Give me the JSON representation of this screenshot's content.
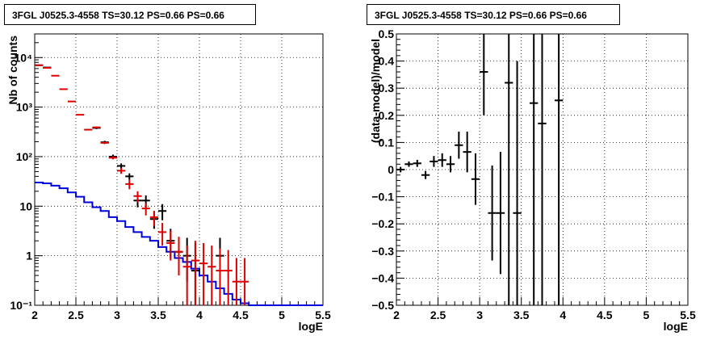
{
  "panels": {
    "left_title": "3FGL J0525.3-4558 TS=30.12 PS=0.66 PS=0.66",
    "right_title": "3FGL J0525.3-4558 TS=30.12 PS=0.66 PS=0.66"
  },
  "chart_data": [
    {
      "type": "line",
      "title": "3FGL J0525.3-4558 TS=30.12 PS=0.66 PS=0.66",
      "xlabel": "logE",
      "ylabel": "Nb of counts",
      "xlim": [
        2,
        5.5
      ],
      "ylim": [
        0.1,
        30000
      ],
      "yscale": "log",
      "grid": true,
      "xticks": [
        "2",
        "2.5",
        "3",
        "3.5",
        "4",
        "4.5",
        "5",
        "5.5"
      ],
      "yticks": [
        "10⁻¹",
        "1",
        "10",
        "10²",
        "10³",
        "10⁴"
      ],
      "series": [
        {
          "color": "#000000",
          "style": "errorbars",
          "points": [
            {
              "x": 2.05,
              "y": 7000,
              "lo": 6900,
              "hi": 7100
            },
            {
              "x": 2.15,
              "y": 6300,
              "lo": 6200,
              "hi": 6400
            },
            {
              "x": 2.75,
              "y": 380,
              "lo": 360,
              "hi": 400
            },
            {
              "x": 2.85,
              "y": 195,
              "lo": 181,
              "hi": 209
            },
            {
              "x": 2.95,
              "y": 100,
              "lo": 90,
              "hi": 110
            },
            {
              "x": 3.05,
              "y": 65,
              "lo": 57,
              "hi": 73
            },
            {
              "x": 3.15,
              "y": 40,
              "lo": 34,
              "hi": 46
            },
            {
              "x": 3.25,
              "y": 13,
              "lo": 9.5,
              "hi": 16.5
            },
            {
              "x": 3.35,
              "y": 13,
              "lo": 9.5,
              "hi": 16.5
            },
            {
              "x": 3.45,
              "y": 5.5,
              "lo": 3.5,
              "hi": 8.0
            },
            {
              "x": 3.55,
              "y": 8,
              "lo": 5.2,
              "hi": 11
            },
            {
              "x": 3.65,
              "y": 2,
              "lo": 0.9,
              "hi": 3.5
            },
            {
              "x": 3.75,
              "y": 1.2,
              "lo": 0.45,
              "hi": 2.4
            },
            {
              "x": 3.85,
              "y": 1,
              "lo": 0.3,
              "hi": 2.3
            },
            {
              "x": 3.95,
              "y": 0.5,
              "lo": 0.1,
              "hi": 1.8
            },
            {
              "x": 4.25,
              "y": 1,
              "lo": 0.1,
              "hi": 2.3
            }
          ]
        },
        {
          "color": "#dd0000",
          "style": "errorbars",
          "points": [
            {
              "x": 2.05,
              "y": 7000,
              "lo": 6950,
              "hi": 7050
            },
            {
              "x": 2.15,
              "y": 6200,
              "lo": 6150,
              "hi": 6250
            },
            {
              "x": 2.25,
              "y": 4300,
              "lo": 4280,
              "hi": 4320
            },
            {
              "x": 2.35,
              "y": 2300,
              "lo": 2290,
              "hi": 2310
            },
            {
              "x": 2.45,
              "y": 1300,
              "lo": 1290,
              "hi": 1310
            },
            {
              "x": 2.55,
              "y": 700,
              "lo": 690,
              "hi": 710
            },
            {
              "x": 2.65,
              "y": 350,
              "lo": 340,
              "hi": 360
            },
            {
              "x": 2.75,
              "y": 390,
              "lo": 375,
              "hi": 405
            },
            {
              "x": 2.85,
              "y": 190,
              "lo": 180,
              "hi": 200
            },
            {
              "x": 2.95,
              "y": 95,
              "lo": 88,
              "hi": 102
            },
            {
              "x": 3.05,
              "y": 52,
              "lo": 45,
              "hi": 59
            },
            {
              "x": 3.15,
              "y": 28,
              "lo": 22,
              "hi": 34
            },
            {
              "x": 3.25,
              "y": 16,
              "lo": 12,
              "hi": 20
            },
            {
              "x": 3.35,
              "y": 9,
              "lo": 6.5,
              "hi": 11.5
            },
            {
              "x": 3.45,
              "y": 6,
              "lo": 4,
              "hi": 8
            },
            {
              "x": 3.55,
              "y": 3,
              "lo": 1.6,
              "hi": 4.6
            },
            {
              "x": 3.65,
              "y": 1.8,
              "lo": 0.8,
              "hi": 3.2
            },
            {
              "x": 3.75,
              "y": 1.2,
              "lo": 0.4,
              "hi": 2.4
            },
            {
              "x": 3.85,
              "y": 0.6,
              "lo": 0.1,
              "hi": 1.6
            },
            {
              "x": 3.95,
              "y": 0.8,
              "lo": 0.1,
              "hi": 2.0
            },
            {
              "x": 4.05,
              "y": 0.7,
              "lo": 0.1,
              "hi": 1.8
            },
            {
              "x": 4.15,
              "y": 0.6,
              "lo": 0.1,
              "hi": 1.6
            },
            {
              "x": 4.25,
              "y": 0.5,
              "lo": 0.1,
              "hi": 1.4
            },
            {
              "x": 4.35,
              "y": 0.5,
              "lo": 0.1,
              "hi": 1.3
            },
            {
              "x": 4.45,
              "y": 0.3,
              "lo": 0.1,
              "hi": 0.9
            },
            {
              "x": 4.55,
              "y": 0.3,
              "lo": 0.1,
              "hi": 0.9
            }
          ]
        },
        {
          "color": "#0000dd",
          "style": "histogram",
          "bin_edges": [
            2.0,
            2.1,
            2.2,
            2.3,
            2.4,
            2.5,
            2.6,
            2.7,
            2.8,
            2.9,
            3.0,
            3.1,
            3.2,
            3.3,
            3.4,
            3.5,
            3.6,
            3.7,
            3.8,
            3.9,
            4.0,
            4.1,
            4.2,
            4.3,
            4.4,
            4.5,
            4.6,
            5.5
          ],
          "values": [
            30,
            29,
            26,
            23,
            19,
            15.5,
            12,
            9.5,
            8,
            6,
            5,
            3.8,
            3,
            2.4,
            2,
            1.5,
            1.2,
            0.9,
            0.75,
            0.55,
            0.4,
            0.3,
            0.22,
            0.17,
            0.13,
            0.11,
            0.1
          ]
        }
      ]
    },
    {
      "type": "scatter",
      "title": "3FGL J0525.3-4558 TS=30.12 PS=0.66 PS=0.66",
      "xlabel": "logE",
      "ylabel": "(data-model)/model",
      "xlim": [
        2,
        5.5
      ],
      "ylim": [
        -0.5,
        0.5
      ],
      "grid": true,
      "xticks": [
        "2",
        "2.5",
        "3",
        "3.5",
        "4",
        "4.5",
        "5",
        "5.5"
      ],
      "yticks": [
        "−0.5",
        "−0.4",
        "−0.3",
        "−0.2",
        "−0.1",
        "0",
        "0.1",
        "0.2",
        "0.3",
        "0.4",
        "0.5"
      ],
      "series": [
        {
          "color": "#000000",
          "points": [
            {
              "x": 2.05,
              "y": 0.0,
              "lo": -0.01,
              "hi": 0.01
            },
            {
              "x": 2.15,
              "y": 0.02,
              "lo": 0.01,
              "hi": 0.03
            },
            {
              "x": 2.25,
              "y": 0.023,
              "lo": 0.01,
              "hi": 0.036
            },
            {
              "x": 2.35,
              "y": -0.02,
              "lo": -0.035,
              "hi": -0.005
            },
            {
              "x": 2.45,
              "y": 0.03,
              "lo": 0.01,
              "hi": 0.05
            },
            {
              "x": 2.55,
              "y": 0.035,
              "lo": 0.01,
              "hi": 0.06
            },
            {
              "x": 2.65,
              "y": 0.02,
              "lo": -0.01,
              "hi": 0.05
            },
            {
              "x": 2.75,
              "y": 0.09,
              "lo": 0.04,
              "hi": 0.14
            },
            {
              "x": 2.85,
              "y": 0.065,
              "lo": -0.01,
              "hi": 0.14
            },
            {
              "x": 2.95,
              "y": -0.035,
              "lo": -0.13,
              "hi": 0.06
            },
            {
              "x": 3.05,
              "y": 0.36,
              "lo": 0.2,
              "hi": 0.52
            },
            {
              "x": 3.15,
              "y": -0.16,
              "lo": -0.335,
              "hi": 0.015
            },
            {
              "x": 3.25,
              "y": -0.16,
              "lo": -0.385,
              "hi": 0.065
            },
            {
              "x": 3.35,
              "y": 0.32,
              "lo": -0.5,
              "hi": 0.55
            },
            {
              "x": 3.45,
              "y": -0.16,
              "lo": -0.55,
              "hi": 0.4
            },
            {
              "x": 3.65,
              "y": 0.245,
              "lo": -0.55,
              "hi": 0.55
            },
            {
              "x": 3.75,
              "y": 0.17,
              "lo": -0.55,
              "hi": 0.55
            },
            {
              "x": 3.95,
              "y": 0.255,
              "lo": -0.55,
              "hi": 0.55
            }
          ]
        }
      ]
    }
  ]
}
